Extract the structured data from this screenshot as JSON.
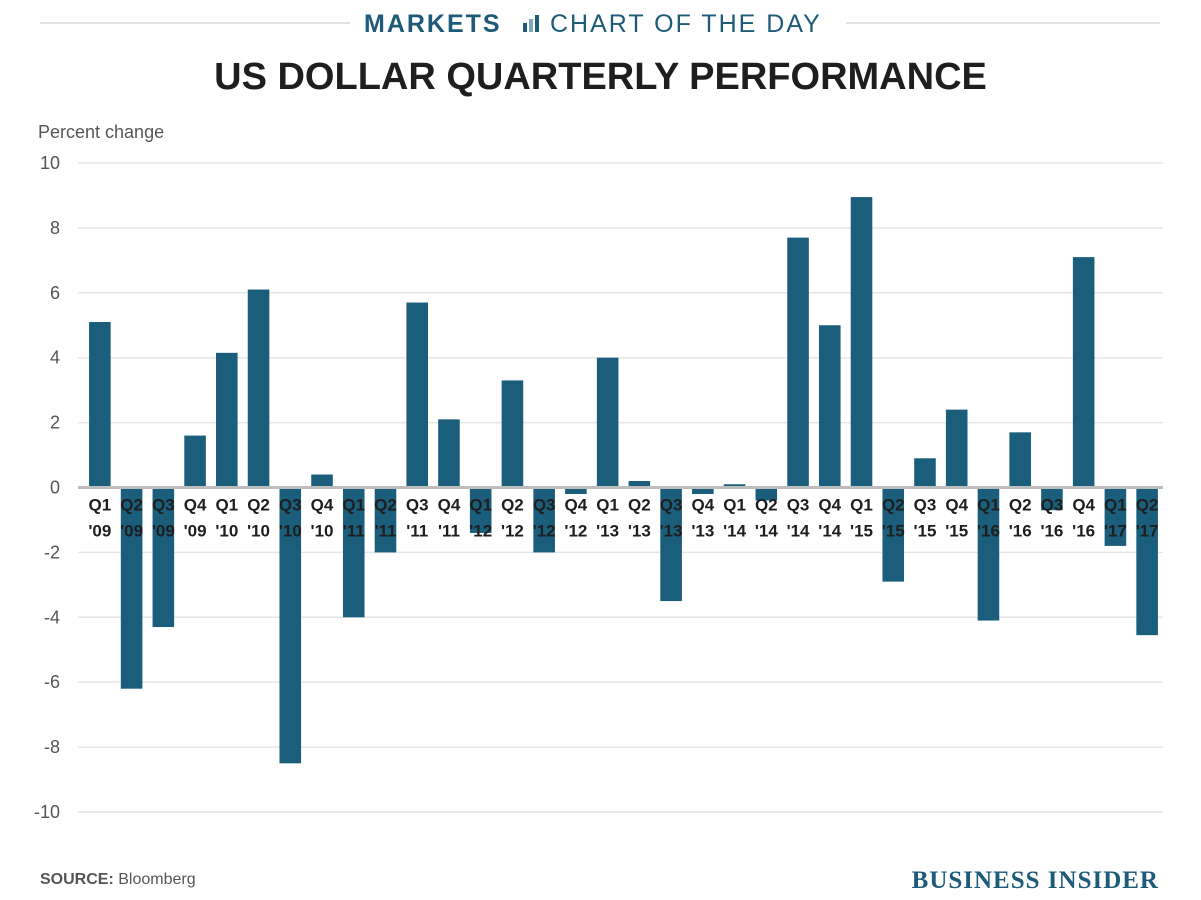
{
  "header": {
    "section": "MARKETS",
    "tagline": "CHART OF THE DAY"
  },
  "footer": {
    "source_label": "SOURCE:",
    "source_value": "Bloomberg",
    "brand": "BUSINESS INSIDER"
  },
  "colors": {
    "bar": "#1b5e7c",
    "grid": "#e6e6e6",
    "zero": "#bdbdbd",
    "accent": "#1d5b79"
  },
  "chart_data": {
    "type": "bar",
    "title": "US DOLLAR QUARTERLY PERFORMANCE",
    "ylabel": "Percent change",
    "xlabel": "",
    "ylim": [
      -10,
      10
    ],
    "yticks": [
      10,
      8,
      6,
      4,
      2,
      0,
      -2,
      -4,
      -6,
      -8,
      -10
    ],
    "grid": true,
    "categories": [
      [
        "Q1",
        "'09"
      ],
      [
        "Q2",
        "'09"
      ],
      [
        "Q3",
        "'09"
      ],
      [
        "Q4",
        "'09"
      ],
      [
        "Q1",
        "'10"
      ],
      [
        "Q2",
        "'10"
      ],
      [
        "Q3",
        "'10"
      ],
      [
        "Q4",
        "'10"
      ],
      [
        "Q1",
        "'11"
      ],
      [
        "Q2",
        "'11"
      ],
      [
        "Q3",
        "'11"
      ],
      [
        "Q4",
        "'11"
      ],
      [
        "Q1",
        "'12"
      ],
      [
        "Q2",
        "'12"
      ],
      [
        "Q3",
        "'12"
      ],
      [
        "Q4",
        "'12"
      ],
      [
        "Q1",
        "'13"
      ],
      [
        "Q2",
        "'13"
      ],
      [
        "Q3",
        "'13"
      ],
      [
        "Q4",
        "'13"
      ],
      [
        "Q1",
        "'14"
      ],
      [
        "Q2",
        "'14"
      ],
      [
        "Q3",
        "'14"
      ],
      [
        "Q4",
        "'14"
      ],
      [
        "Q1",
        "'15"
      ],
      [
        "Q2",
        "'15"
      ],
      [
        "Q3",
        "'15"
      ],
      [
        "Q4",
        "'15"
      ],
      [
        "Q1",
        "'16"
      ],
      [
        "Q2",
        "'16"
      ],
      [
        "Q3",
        "'16"
      ],
      [
        "Q4",
        "'16"
      ],
      [
        "Q1",
        "'17"
      ],
      [
        "Q2",
        "'17"
      ]
    ],
    "values": [
      5.1,
      -6.2,
      -4.3,
      1.6,
      4.15,
      6.1,
      -8.5,
      0.4,
      -4.0,
      -2.0,
      5.7,
      2.1,
      -1.4,
      3.3,
      -2.0,
      -0.2,
      4.0,
      0.2,
      -3.5,
      -0.2,
      0.1,
      -0.4,
      7.7,
      5.0,
      8.95,
      -2.9,
      0.9,
      2.4,
      -4.1,
      1.7,
      -0.7,
      7.1,
      -1.8,
      -4.55
    ]
  }
}
